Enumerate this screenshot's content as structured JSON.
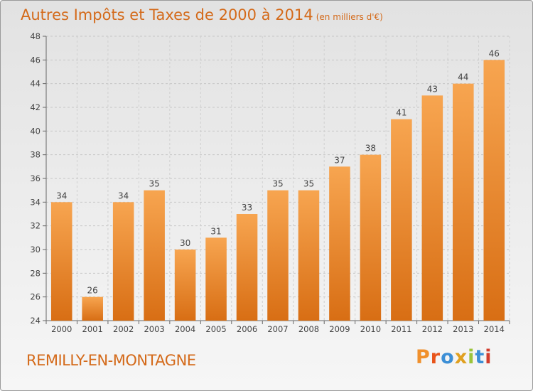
{
  "chart_data": {
    "type": "bar",
    "title": "Autres Impôts et Taxes de 2000 à 2014",
    "subtitle": "(en milliers d'€)",
    "categories": [
      "2000",
      "2001",
      "2002",
      "2003",
      "2004",
      "2005",
      "2006",
      "2007",
      "2008",
      "2009",
      "2010",
      "2011",
      "2012",
      "2013",
      "2014"
    ],
    "values": [
      34,
      26,
      34,
      35,
      30,
      31,
      33,
      35,
      35,
      37,
      38,
      41,
      43,
      44,
      46
    ],
    "ylim": [
      24,
      48
    ],
    "yticks": [
      24,
      26,
      28,
      30,
      32,
      34,
      36,
      38,
      40,
      42,
      44,
      46,
      48
    ],
    "grid": true,
    "bar_color": "#f0902c"
  },
  "footer": {
    "commune": "REMILLY-EN-MONTAGNE",
    "logo": "Proxiti"
  }
}
